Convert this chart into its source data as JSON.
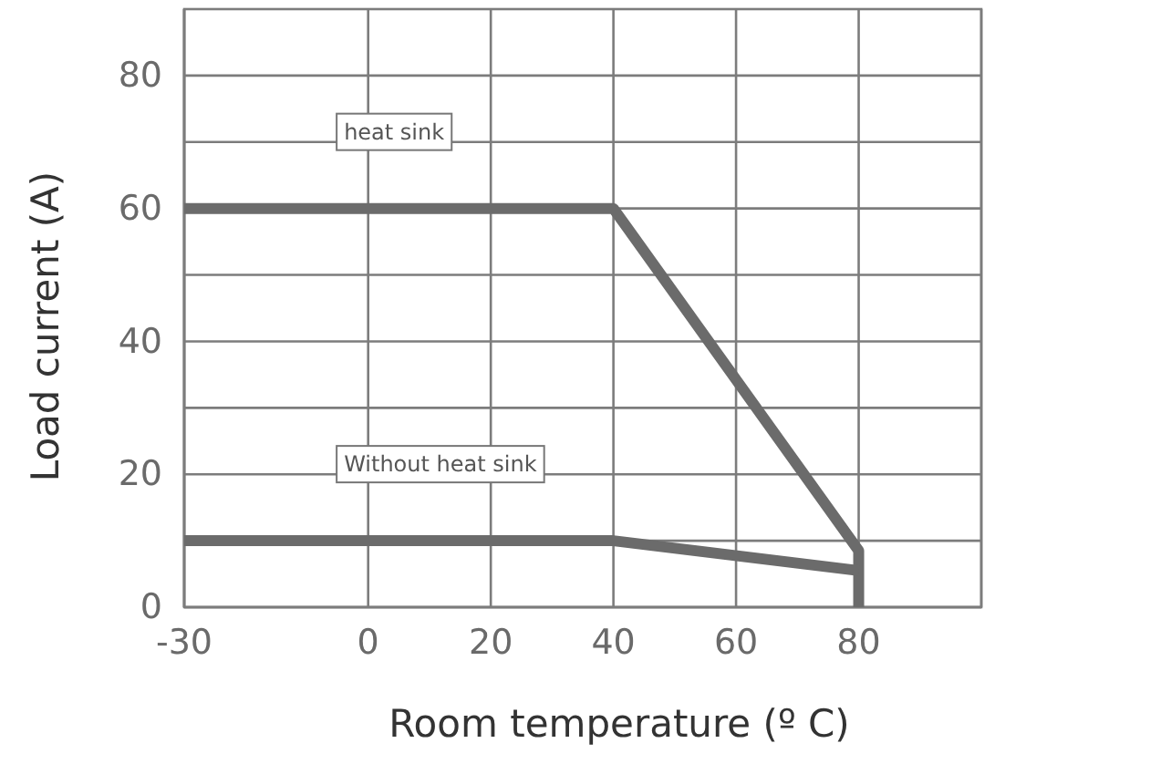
{
  "chart_data": {
    "type": "line",
    "xlabel": "Room temperature (º C)",
    "ylabel": "Load current (A)",
    "xlim": [
      -30,
      100
    ],
    "xticks": [
      -30,
      0,
      20,
      40,
      60,
      80,
      {
        "value": 100,
        "label": null
      }
    ],
    "ylim": [
      0,
      90
    ],
    "yticks": [
      0,
      {
        "value": 10,
        "label": null
      },
      20,
      {
        "value": 30,
        "label": null
      },
      40,
      {
        "value": 50,
        "label": null
      },
      60,
      {
        "value": 70,
        "label": null
      },
      80
    ],
    "grid": true,
    "legend": false,
    "marker": "none",
    "line_style": "solid",
    "series": [
      {
        "name": "heat sink",
        "color": "#6b6b6b",
        "x": [
          -30,
          40,
          80,
          80
        ],
        "values": [
          60,
          60,
          8.5,
          0
        ]
      },
      {
        "name": "Without heat sink",
        "color": "#6b6b6b",
        "x": [
          -30,
          40,
          80
        ],
        "values": [
          10,
          10,
          5.5
        ]
      }
    ]
  }
}
